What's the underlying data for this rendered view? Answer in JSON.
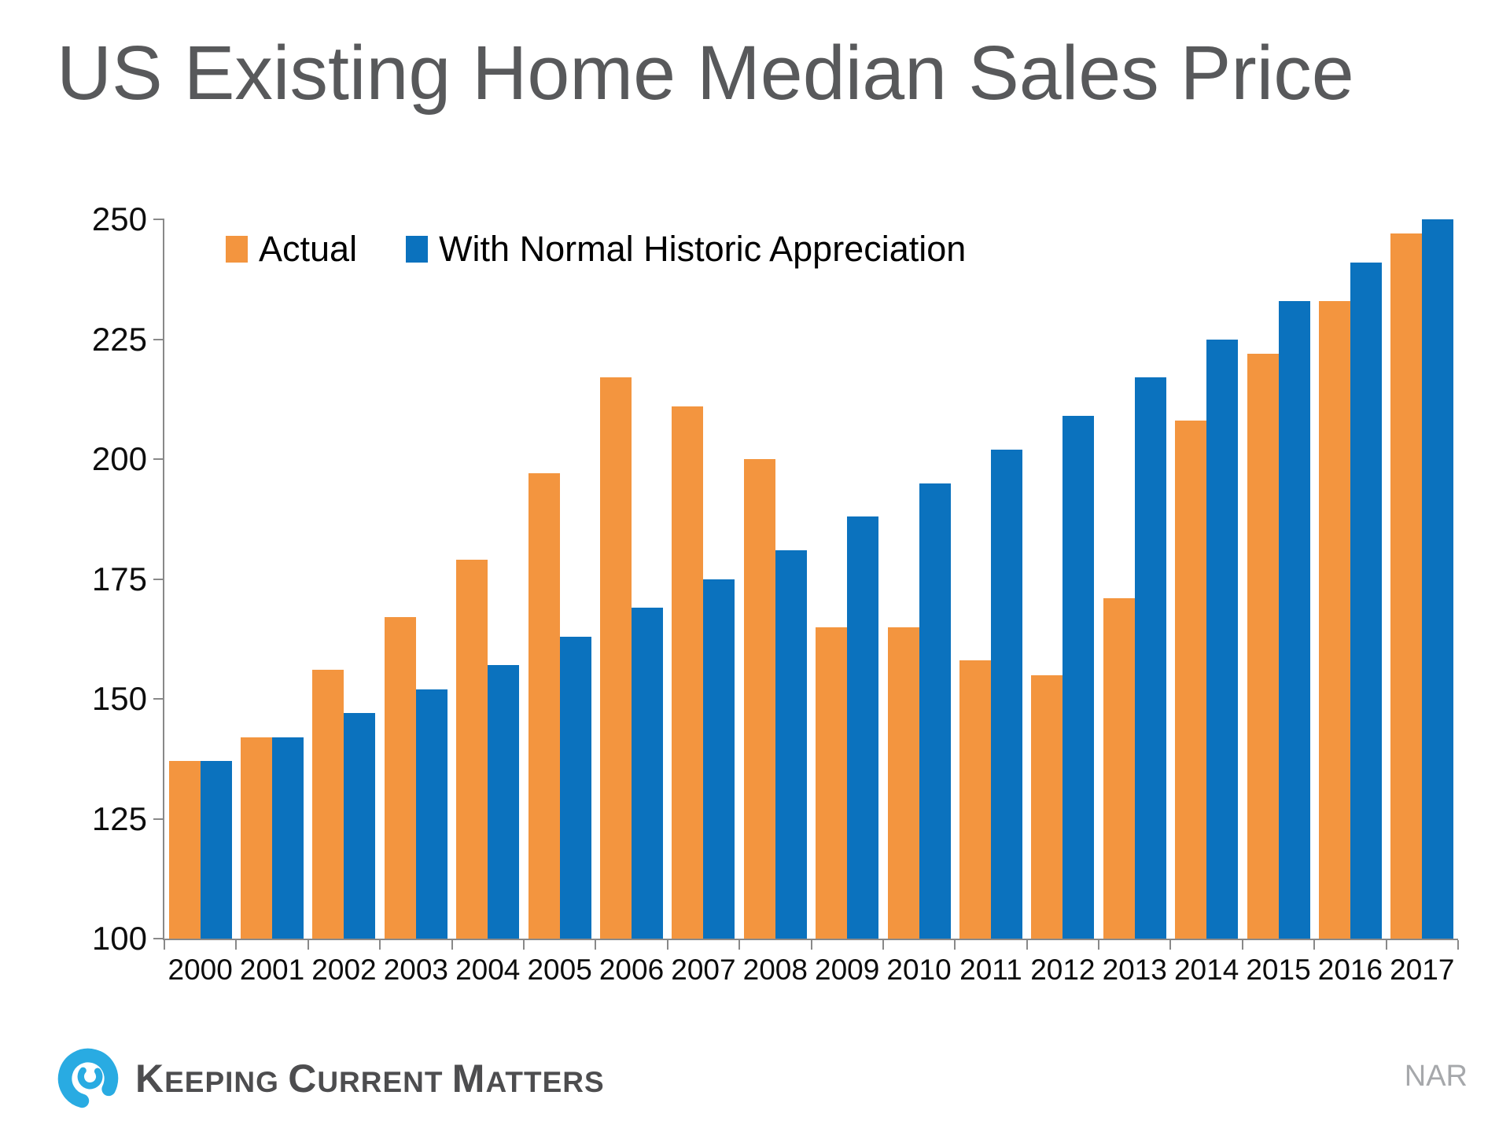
{
  "title": "US Existing Home Median Sales Price",
  "legend": [
    {
      "label": "Actual",
      "color": "#F3953F"
    },
    {
      "label": "With Normal Historic Appreciation",
      "color": "#0B72BE"
    }
  ],
  "chart_data": {
    "type": "bar",
    "title": "US Existing Home Median Sales Price",
    "categories": [
      "2000",
      "2001",
      "2002",
      "2003",
      "2004",
      "2005",
      "2006",
      "2007",
      "2008",
      "2009",
      "2010",
      "2011",
      "2012",
      "2013",
      "2014",
      "2015",
      "2016",
      "2017"
    ],
    "series": [
      {
        "name": "Actual",
        "color": "#F3953F",
        "values": [
          137,
          142,
          156,
          167,
          179,
          197,
          217,
          211,
          200,
          165,
          165,
          158,
          155,
          171,
          208,
          222,
          233,
          247
        ]
      },
      {
        "name": "With Normal Historic Appreciation",
        "color": "#0B72BE",
        "values": [
          137,
          142,
          147,
          152,
          157,
          163,
          169,
          175,
          181,
          188,
          195,
          202,
          209,
          217,
          225,
          233,
          241,
          250
        ]
      }
    ],
    "xlabel": "",
    "ylabel": "",
    "ylim": [
      100,
      250
    ],
    "yticks": [
      100,
      125,
      150,
      175,
      200,
      225,
      250
    ],
    "grid": false,
    "legend_position": "top-left"
  },
  "footer": {
    "brand_words": [
      "Keeping",
      "Current",
      "Matters"
    ],
    "source": "NAR"
  },
  "colors": {
    "title_text": "#58595B",
    "axis": "#898989",
    "tick_text": "#0d0d0d",
    "brand_text": "#4D4D4F",
    "logo_blue": "#29ABE2",
    "source_text": "#A6A8AB",
    "background": "#FFFFFF"
  }
}
